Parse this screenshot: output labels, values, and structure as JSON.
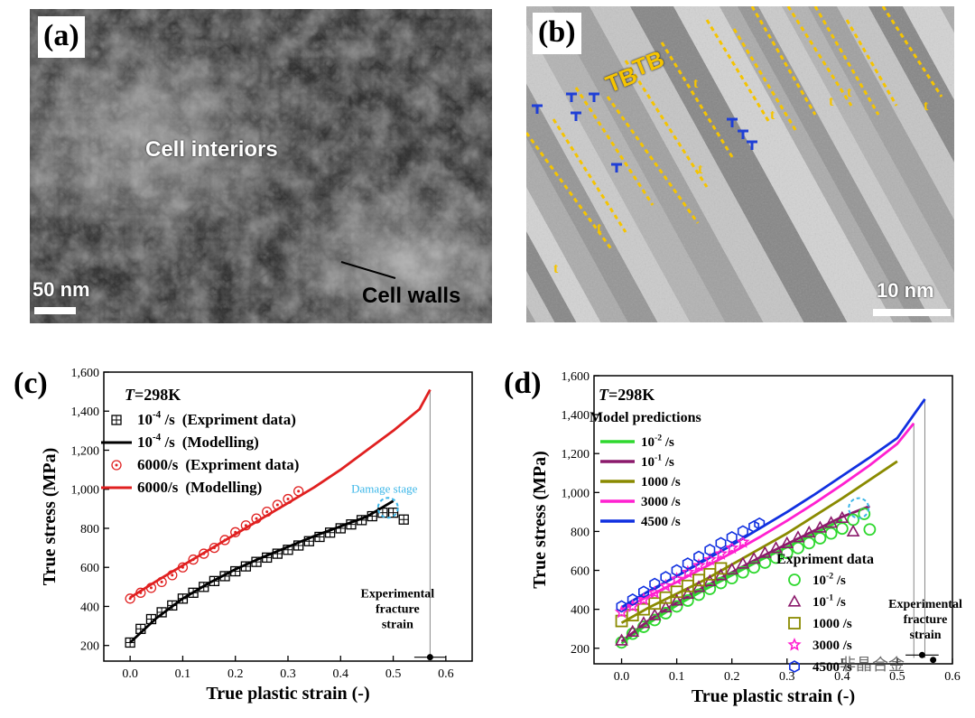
{
  "panel_a": {
    "letter": "(a)",
    "label_interiors": "Cell interiors",
    "label_walls": "Cell walls",
    "scale": "50 nm"
  },
  "panel_b": {
    "letter": "(b)",
    "label_tb1": "TB",
    "label_tb2": "TB",
    "marker_t": "t",
    "scale": "10 nm",
    "line_color": "#f5c400",
    "dislocation_color": "#1f3fd6"
  },
  "panel_c": {
    "letter": "(c)",
    "temperature_T": "T",
    "temperature_rest": "=298K",
    "damage_label": "Damage stage",
    "fracture_label": [
      "Experimental",
      "fracture",
      "strain"
    ]
  },
  "panel_d": {
    "letter": "(d)",
    "temperature_T": "T",
    "temperature_rest": "=298K",
    "model_title": "Model predictions",
    "experiment_title": "Expriment data",
    "fracture_label": [
      "Experimental",
      "fracture",
      "strain"
    ]
  },
  "watermark": "非晶合金",
  "chart_data": [
    {
      "type": "line",
      "title": "T=298K",
      "xlabel": "True plastic strain (-)",
      "ylabel": "True stress (MPa)",
      "xlim": [
        -0.05,
        0.65
      ],
      "ylim": [
        120,
        1600
      ],
      "xticks": [
        "0.0",
        "0.1",
        "0.2",
        "0.3",
        "0.4",
        "0.5",
        "0.6"
      ],
      "yticks": [
        "200",
        "400",
        "600",
        "800",
        "1,000",
        "1,200",
        "1,400",
        "1,600"
      ],
      "legend": [
        {
          "rate_base": "10",
          "rate_exp": "-4",
          "rate_unit": " /s",
          "desc": "(Expriment data)",
          "kind": "boxplus",
          "color": "#000000"
        },
        {
          "rate_base": "10",
          "rate_exp": "-4",
          "rate_unit": " /s",
          "desc": "(Modelling)",
          "kind": "line",
          "color": "#000000"
        },
        {
          "rate_base": "",
          "rate_exp": "",
          "rate_unit": "6000/s",
          "desc": "(Expriment data)",
          "kind": "circleplus",
          "color": "#e02020"
        },
        {
          "rate_base": "",
          "rate_exp": "",
          "rate_unit": "6000/s",
          "desc": "(Modelling)",
          "kind": "line",
          "color": "#e02020"
        }
      ],
      "series": [
        {
          "name": "6000/s (Modelling)",
          "kind": "line",
          "color": "#e02020",
          "x": [
            0.0,
            0.05,
            0.1,
            0.15,
            0.2,
            0.25,
            0.3,
            0.35,
            0.4,
            0.45,
            0.5,
            0.55,
            0.57
          ],
          "y": [
            445,
            530,
            610,
            690,
            770,
            850,
            930,
            1010,
            1100,
            1200,
            1300,
            1410,
            1510
          ]
        },
        {
          "name": "10^-4 /s (Modelling)",
          "kind": "line",
          "color": "#000000",
          "x": [
            0.0,
            0.05,
            0.1,
            0.15,
            0.2,
            0.25,
            0.3,
            0.35,
            0.4,
            0.45,
            0.5
          ],
          "y": [
            215,
            340,
            440,
            520,
            590,
            650,
            705,
            760,
            810,
            860,
            940
          ]
        },
        {
          "name": "10^-4 /s (Expriment data)",
          "kind": "boxplus",
          "color": "#000000",
          "x": [
            0.0,
            0.02,
            0.04,
            0.06,
            0.08,
            0.1,
            0.12,
            0.14,
            0.16,
            0.18,
            0.2,
            0.22,
            0.24,
            0.26,
            0.28,
            0.3,
            0.32,
            0.34,
            0.36,
            0.38,
            0.4,
            0.42,
            0.44,
            0.46,
            0.48,
            0.5,
            0.52
          ],
          "y": [
            215,
            285,
            335,
            370,
            405,
            440,
            470,
            500,
            530,
            555,
            580,
            605,
            628,
            650,
            670,
            690,
            712,
            734,
            756,
            778,
            800,
            820,
            842,
            862,
            880,
            880,
            845
          ]
        },
        {
          "name": "6000/s (Expriment data)",
          "kind": "circleplus",
          "color": "#e02020",
          "x": [
            0.0,
            0.02,
            0.04,
            0.06,
            0.08,
            0.1,
            0.12,
            0.14,
            0.16,
            0.18,
            0.2,
            0.22,
            0.24,
            0.26,
            0.28,
            0.3,
            0.32
          ],
          "y": [
            440,
            470,
            495,
            525,
            560,
            600,
            640,
            670,
            700,
            740,
            780,
            815,
            850,
            885,
            920,
            950,
            990
          ]
        }
      ],
      "damage_point": {
        "x": 0.49,
        "y": 905
      },
      "fracture": {
        "x": 0.57,
        "y": 140,
        "xerr": 0.03
      }
    },
    {
      "type": "line",
      "title": "T=298K",
      "xlabel": "True plastic strain (-)",
      "ylabel": "True stress (MPa)",
      "xlim": [
        -0.05,
        0.6
      ],
      "ylim": [
        120,
        1600
      ],
      "xticks": [
        "0.0",
        "0.1",
        "0.2",
        "0.3",
        "0.4",
        "0.5",
        "0.6"
      ],
      "yticks": [
        "200",
        "400",
        "600",
        "800",
        "1,000",
        "1,200",
        "1,400",
        "1,600"
      ],
      "model_legend": [
        {
          "rate_base": "10",
          "rate_exp": "-2",
          "rate_unit": " /s",
          "color": "#2fd82f"
        },
        {
          "rate_base": "10",
          "rate_exp": "-1",
          "rate_unit": " /s",
          "color": "#8b1a6b"
        },
        {
          "rate_base": "",
          "rate_exp": "",
          "rate_unit": "1000 /s",
          "color": "#8a8a00"
        },
        {
          "rate_base": "",
          "rate_exp": "",
          "rate_unit": "3000 /s",
          "color": "#ff20d0"
        },
        {
          "rate_base": "",
          "rate_exp": "",
          "rate_unit": "4500 /s",
          "color": "#1030e0"
        }
      ],
      "exp_legend": [
        {
          "rate_base": "10",
          "rate_exp": "-2",
          "rate_unit": " /s",
          "kind": "circle",
          "color": "#2fd82f"
        },
        {
          "rate_base": "10",
          "rate_exp": "-1",
          "rate_unit": " /s",
          "kind": "triangle",
          "color": "#8b1a6b"
        },
        {
          "rate_base": "",
          "rate_exp": "",
          "rate_unit": "1000 /s",
          "kind": "square",
          "color": "#8a8a00"
        },
        {
          "rate_base": "",
          "rate_exp": "",
          "rate_unit": "3000 /s",
          "kind": "star",
          "color": "#ff20d0"
        },
        {
          "rate_base": "",
          "rate_exp": "",
          "rate_unit": "4500 /s",
          "kind": "hexagon",
          "color": "#1030e0"
        }
      ],
      "series": [
        {
          "name": "10^-2 /s (Model)",
          "kind": "line",
          "color": "#2fd82f",
          "x": [
            0.0,
            0.05,
            0.1,
            0.15,
            0.2,
            0.25,
            0.3,
            0.35,
            0.4
          ],
          "y": [
            225,
            330,
            420,
            500,
            575,
            650,
            720,
            790,
            860
          ]
        },
        {
          "name": "10^-1 /s (Model)",
          "kind": "line",
          "color": "#8b1a6b",
          "x": [
            0.0,
            0.05,
            0.1,
            0.15,
            0.2,
            0.25,
            0.3,
            0.35,
            0.4,
            0.45
          ],
          "y": [
            235,
            345,
            435,
            515,
            590,
            665,
            735,
            805,
            875,
            930
          ]
        },
        {
          "name": "1000 /s (Model)",
          "kind": "line",
          "color": "#8a8a00",
          "x": [
            0.0,
            0.05,
            0.1,
            0.15,
            0.2,
            0.25,
            0.3,
            0.35,
            0.4,
            0.45,
            0.5
          ],
          "y": [
            330,
            410,
            480,
            550,
            630,
            710,
            790,
            880,
            970,
            1065,
            1160
          ]
        },
        {
          "name": "3000 /s (Model)",
          "kind": "line",
          "color": "#ff20d0",
          "x": [
            0.0,
            0.05,
            0.1,
            0.15,
            0.2,
            0.25,
            0.3,
            0.35,
            0.4,
            0.45,
            0.5,
            0.53
          ],
          "y": [
            395,
            470,
            540,
            615,
            690,
            770,
            855,
            945,
            1040,
            1140,
            1250,
            1355
          ]
        },
        {
          "name": "4500 /s (Model)",
          "kind": "line",
          "color": "#1030e0",
          "x": [
            0.0,
            0.05,
            0.1,
            0.15,
            0.2,
            0.25,
            0.3,
            0.35,
            0.4,
            0.45,
            0.5,
            0.55
          ],
          "y": [
            410,
            495,
            570,
            650,
            730,
            815,
            900,
            990,
            1085,
            1180,
            1280,
            1480
          ]
        },
        {
          "name": "10^-2 /s (Exp)",
          "kind": "circle",
          "color": "#2fd82f",
          "x": [
            0.0,
            0.02,
            0.04,
            0.06,
            0.08,
            0.1,
            0.12,
            0.14,
            0.16,
            0.18,
            0.2,
            0.22,
            0.24,
            0.26,
            0.28,
            0.3,
            0.32,
            0.34,
            0.36,
            0.38,
            0.4,
            0.42,
            0.44,
            0.45
          ],
          "y": [
            230,
            275,
            310,
            345,
            380,
            415,
            445,
            475,
            505,
            535,
            560,
            590,
            615,
            640,
            665,
            690,
            715,
            740,
            765,
            790,
            815,
            860,
            890,
            810
          ]
        },
        {
          "name": "10^-1 /s (Exp)",
          "kind": "triangle",
          "color": "#8b1a6b",
          "x": [
            0.0,
            0.02,
            0.04,
            0.06,
            0.08,
            0.1,
            0.12,
            0.14,
            0.16,
            0.18,
            0.2,
            0.22,
            0.24,
            0.26,
            0.28,
            0.3,
            0.32,
            0.34,
            0.36,
            0.38,
            0.4,
            0.42
          ],
          "y": [
            240,
            285,
            330,
            370,
            410,
            445,
            480,
            515,
            545,
            575,
            605,
            635,
            660,
            690,
            715,
            740,
            770,
            795,
            820,
            845,
            870,
            800
          ]
        },
        {
          "name": "1000 /s (Exp)",
          "kind": "square",
          "color": "#8a8a00",
          "x": [
            0.0,
            0.02,
            0.04,
            0.06,
            0.08,
            0.1,
            0.12,
            0.14,
            0.16,
            0.18
          ],
          "y": [
            340,
            370,
            400,
            430,
            460,
            490,
            520,
            550,
            580,
            610
          ]
        },
        {
          "name": "3000 /s (Exp)",
          "kind": "star",
          "color": "#ff20d0",
          "x": [
            0.0,
            0.02,
            0.04,
            0.06,
            0.08,
            0.1,
            0.12,
            0.14,
            0.16,
            0.18,
            0.2,
            0.22
          ],
          "y": [
            385,
            415,
            450,
            485,
            520,
            555,
            590,
            625,
            655,
            685,
            715,
            745
          ]
        },
        {
          "name": "4500 /s (Exp)",
          "kind": "hexagon",
          "color": "#1030e0",
          "x": [
            0.0,
            0.02,
            0.04,
            0.06,
            0.08,
            0.1,
            0.12,
            0.14,
            0.16,
            0.18,
            0.2,
            0.22,
            0.24,
            0.25
          ],
          "y": [
            415,
            450,
            490,
            530,
            565,
            600,
            635,
            670,
            705,
            740,
            770,
            800,
            825,
            840
          ]
        }
      ],
      "damage_point": {
        "x": 0.43,
        "y": 920
      },
      "fracture": [
        {
          "x": 0.545,
          "y": 165,
          "xerr": 0.03
        },
        {
          "x": 0.565,
          "y": 140,
          "xerr": 0.0
        }
      ],
      "fracture_lines": [
        {
          "x": 0.53,
          "ytop": 1355
        },
        {
          "x": 0.55,
          "ytop": 1480
        }
      ]
    }
  ]
}
